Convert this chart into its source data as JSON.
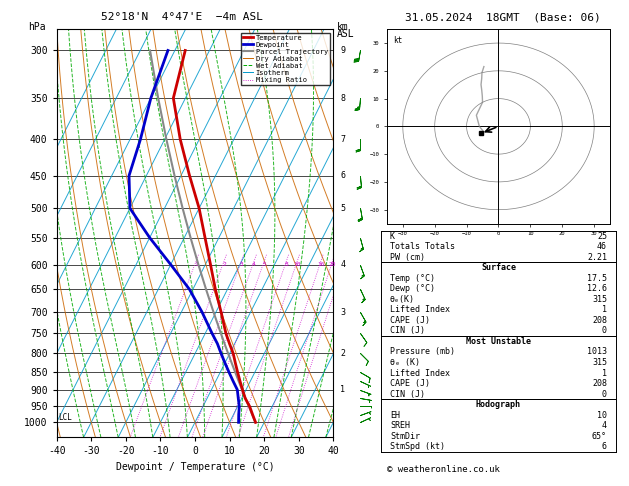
{
  "title_left": "52°18'N  4°47'E  −4m ASL",
  "title_right": "31.05.2024  18GMT  (Base: 06)",
  "xlabel": "Dewpoint / Temperature (°C)",
  "xlim": [
    -40,
    40
  ],
  "bg_color": "#ffffff",
  "temp_color": "#cc0000",
  "dewp_color": "#0000cc",
  "parcel_color": "#888888",
  "dry_adiabat_color": "#cc6600",
  "wet_adiabat_color": "#00aa00",
  "isotherm_color": "#0099cc",
  "mixing_ratio_color": "#cc00cc",
  "legend_entries": [
    "Temperature",
    "Dewpoint",
    "Parcel Trajectory",
    "Dry Adiabat",
    "Wet Adiabat",
    "Isotherm",
    "Mixing Ratio"
  ],
  "stats_K": 25,
  "stats_TT": 46,
  "stats_PW": 2.21,
  "surf_temp": 17.5,
  "surf_dewp": 12.6,
  "surf_theta_e": 315,
  "surf_li": 1,
  "surf_cape": 208,
  "surf_cin": 0,
  "mu_pressure": 1013,
  "mu_theta_e": 315,
  "mu_li": 1,
  "mu_cape": 208,
  "mu_cin": 0,
  "hodo_EH": 10,
  "hodo_SREH": 4,
  "hodo_StmDir": 65,
  "hodo_StmSpd": 6,
  "copyright": "© weatheronline.co.uk",
  "mixing_ratio_values": [
    1,
    2,
    3,
    4,
    5,
    8,
    10,
    16,
    20,
    25
  ]
}
